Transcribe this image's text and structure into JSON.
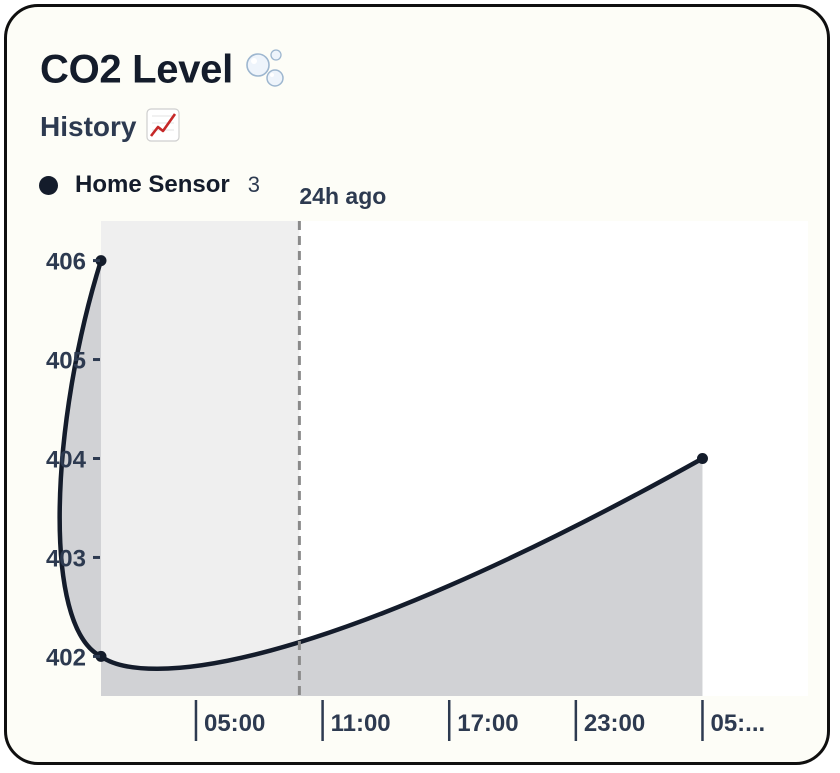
{
  "card": {
    "title": "CO2 Level",
    "title_icon": "bubbles-icon",
    "subtitle": "History",
    "subtitle_icon": "chart-increasing-icon"
  },
  "legend": {
    "name": "Home Sensor",
    "count": "3",
    "dot_color": "#141c2b"
  },
  "chart_data": {
    "type": "area",
    "series": [
      {
        "name": "Home Sensor",
        "color": "#141c2b",
        "fill": "#cfd0d3",
        "points": [
          {
            "t": 0,
            "y": 406
          },
          {
            "t": 0,
            "y": 402
          },
          {
            "t": 28.5,
            "y": 404
          }
        ]
      }
    ],
    "x_ticks": [
      {
        "t": 4.5,
        "label": "05:00"
      },
      {
        "t": 10.5,
        "label": "11:00"
      },
      {
        "t": 16.5,
        "label": "17:00"
      },
      {
        "t": 22.5,
        "label": "23:00"
      },
      {
        "t": 28.5,
        "label": "05:..."
      }
    ],
    "y_ticks": [
      406,
      405,
      404,
      403,
      402
    ],
    "xlim": [
      0,
      33.5
    ],
    "ylim": [
      401.6,
      406.4
    ],
    "annotations": [
      {
        "t": 9.4,
        "label": "24h ago",
        "style": "dashed"
      }
    ],
    "shaded_region": {
      "from": 0,
      "to": 9.4,
      "color": "#efefef"
    },
    "background": "#ffffff",
    "grid": false,
    "legend_position": "top-left"
  }
}
